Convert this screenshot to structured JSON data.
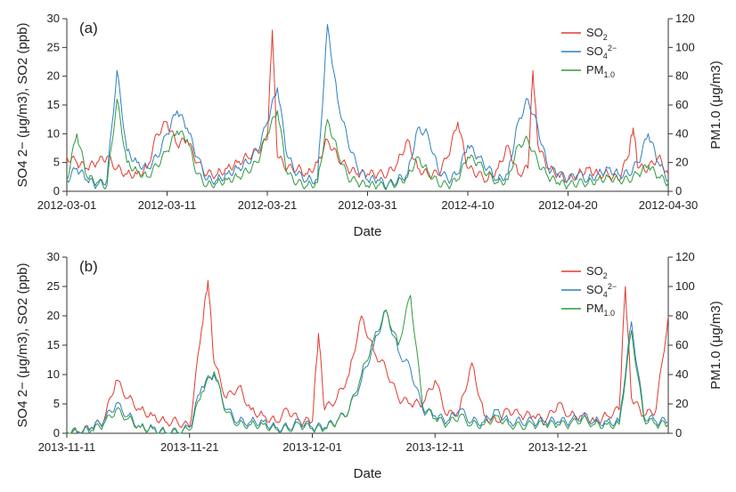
{
  "chart_data": [
    {
      "type": "line",
      "panel_label": "(a)",
      "xlabel": "Date",
      "ylabel_left": "SO4 2− (μg/m3), SO2 (ppb)",
      "ylabel_right": "PM1.0 (μg/m3)",
      "ylim_left": [
        0,
        30
      ],
      "ylim_right": [
        0,
        120
      ],
      "yticks_left": [
        "0",
        "5",
        "10",
        "15",
        "20",
        "25",
        "30"
      ],
      "yticks_right": [
        "0",
        "20",
        "40",
        "60",
        "80",
        "100",
        "120"
      ],
      "x_range_days": [
        0,
        60
      ],
      "xtick_days": [
        0,
        10,
        20,
        30,
        40,
        50,
        60
      ],
      "xtick_labels": [
        "2012-03-01",
        "2012-03-11",
        "2012-03-21",
        "2012-03-31",
        "2012-4-10",
        "2012-04-20",
        "2012-04-30"
      ],
      "legend_position": "top-right",
      "series": [
        {
          "name": "SO2",
          "legend_main": "SO",
          "legend_sub": "2",
          "legend_sup": "",
          "color": "#e03a2e",
          "axis": "left",
          "x": [
            0,
            1,
            2,
            3,
            4,
            5,
            6,
            7,
            8,
            9,
            10,
            11,
            12,
            13,
            14,
            15,
            16,
            17,
            18,
            19,
            20,
            20.5,
            21,
            22,
            23,
            24,
            25,
            26,
            27,
            28,
            29,
            30,
            31,
            32,
            33,
            34,
            35,
            36,
            37,
            38,
            39,
            40,
            41,
            42,
            43,
            44,
            45,
            46,
            46.5,
            47,
            48,
            49,
            50,
            51,
            52,
            53,
            54,
            55,
            56,
            56.5,
            57,
            58,
            59,
            60
          ],
          "y": [
            6,
            5,
            4,
            5,
            6,
            4,
            3,
            3,
            4,
            10,
            12,
            8,
            9,
            5,
            3,
            3,
            4,
            5,
            6,
            7,
            9,
            28,
            6,
            4,
            4,
            3,
            5,
            9,
            6,
            4,
            3,
            3,
            3,
            3,
            5,
            9,
            4,
            3,
            3,
            6,
            12,
            4,
            3,
            2,
            4,
            8,
            3,
            4,
            21,
            8,
            4,
            3,
            2,
            3,
            4,
            3,
            3,
            2,
            6,
            11,
            4,
            4,
            6,
            3
          ]
        },
        {
          "name": "SO4 2−",
          "legend_main": "SO",
          "legend_sub": "4",
          "legend_sup": "2−",
          "color": "#2e7fbf",
          "axis": "left",
          "x": [
            0,
            1,
            2,
            3,
            4,
            5,
            6,
            7,
            8,
            9,
            10,
            11,
            12,
            13,
            14,
            15,
            16,
            17,
            18,
            19,
            20,
            21,
            22,
            23,
            24,
            25,
            26,
            27,
            28,
            29,
            30,
            31,
            32,
            33,
            34,
            35,
            36,
            37,
            38,
            39,
            40,
            41,
            42,
            43,
            44,
            45,
            46,
            47,
            48,
            49,
            50,
            51,
            52,
            53,
            54,
            55,
            56,
            57,
            58,
            59,
            60
          ],
          "y": [
            2,
            4,
            2,
            1,
            2,
            21,
            7,
            5,
            4,
            6,
            10,
            14,
            11,
            6,
            2,
            2,
            3,
            4,
            5,
            7,
            12,
            18,
            6,
            3,
            2,
            2,
            29,
            16,
            9,
            4,
            2,
            2,
            1,
            2,
            3,
            11,
            10,
            4,
            2,
            3,
            8,
            6,
            4,
            2,
            3,
            12,
            16,
            11,
            4,
            3,
            2,
            3,
            2,
            3,
            4,
            3,
            3,
            5,
            10,
            5,
            2
          ]
        },
        {
          "name": "PM1.0",
          "legend_main": "PM",
          "legend_sub": "1.0",
          "legend_sup": "",
          "color": "#2e9a3e",
          "axis": "right",
          "x": [
            0,
            1,
            2,
            3,
            4,
            5,
            6,
            7,
            8,
            9,
            10,
            11,
            12,
            13,
            14,
            15,
            16,
            17,
            18,
            19,
            20,
            21,
            22,
            23,
            24,
            25,
            26,
            27,
            28,
            29,
            30,
            31,
            32,
            33,
            34,
            35,
            36,
            37,
            38,
            39,
            40,
            41,
            42,
            43,
            44,
            45,
            46,
            47,
            48,
            49,
            50,
            51,
            52,
            53,
            54,
            55,
            56,
            57,
            58,
            59,
            60
          ],
          "y": [
            8,
            40,
            10,
            6,
            4,
            64,
            20,
            14,
            10,
            18,
            28,
            42,
            36,
            12,
            4,
            6,
            8,
            10,
            14,
            20,
            40,
            56,
            12,
            6,
            4,
            6,
            50,
            28,
            10,
            6,
            4,
            4,
            4,
            6,
            10,
            24,
            14,
            6,
            4,
            8,
            24,
            20,
            12,
            6,
            8,
            32,
            36,
            20,
            10,
            6,
            4,
            6,
            6,
            8,
            10,
            8,
            8,
            12,
            18,
            10,
            6
          ]
        }
      ]
    },
    {
      "type": "line",
      "panel_label": "(b)",
      "xlabel": "Date",
      "ylabel_left": "SO4 2− (μg/m3), SO2 (ppb)",
      "ylabel_right": "PM1.0 (μg/m3)",
      "ylim_left": [
        0,
        30
      ],
      "ylim_right": [
        0,
        120
      ],
      "yticks_left": [
        "0",
        "5",
        "10",
        "15",
        "20",
        "25",
        "30"
      ],
      "yticks_right": [
        "0",
        "20",
        "40",
        "60",
        "80",
        "100",
        "120"
      ],
      "x_range_days": [
        0,
        49
      ],
      "xtick_days": [
        0,
        10,
        20,
        30,
        40
      ],
      "xtick_labels": [
        "2013-11-11",
        "2013-11-21",
        "2013-12-01",
        "2013-12-11",
        "2013-12-21"
      ],
      "legend_position": "top-right",
      "series": [
        {
          "name": "SO2",
          "legend_main": "SO",
          "legend_sub": "2",
          "legend_sup": "",
          "color": "#e03a2e",
          "axis": "left",
          "x": [
            0,
            1,
            2,
            3,
            4,
            5,
            6,
            7,
            8,
            9,
            10,
            11,
            11.5,
            12,
            13,
            14,
            15,
            16,
            17,
            18,
            19,
            20,
            20.5,
            21,
            22,
            23,
            24,
            25,
            26,
            27,
            28,
            29,
            30,
            31,
            32,
            33,
            34,
            35,
            36,
            37,
            38,
            39,
            40,
            41,
            42,
            43,
            44,
            45,
            45.5,
            46,
            47,
            48,
            49
          ],
          "y": [
            0,
            0,
            1,
            2,
            9,
            6,
            4,
            3,
            2,
            2,
            1,
            18,
            26,
            12,
            6,
            8,
            4,
            3,
            2,
            4,
            2,
            2,
            17,
            4,
            6,
            10,
            20,
            14,
            11,
            6,
            5,
            5,
            9,
            3,
            4,
            12,
            3,
            2,
            4,
            3,
            3,
            2,
            5,
            3,
            3,
            2,
            3,
            4,
            25,
            6,
            3,
            4,
            20
          ]
        },
        {
          "name": "SO4 2−",
          "legend_main": "SO",
          "legend_sub": "4",
          "legend_sup": "2−",
          "color": "#2e7fbf",
          "axis": "left",
          "x": [
            0,
            1,
            2,
            3,
            4,
            5,
            6,
            7,
            8,
            9,
            10,
            11,
            12,
            13,
            14,
            15,
            16,
            17,
            18,
            19,
            20,
            21,
            22,
            23,
            24,
            25,
            26,
            27,
            28,
            29,
            30,
            31,
            32,
            33,
            34,
            35,
            36,
            37,
            38,
            39,
            40,
            41,
            42,
            43,
            44,
            45,
            46,
            47,
            48,
            49
          ],
          "y": [
            0,
            0,
            1,
            2,
            5,
            3,
            1,
            1,
            0,
            0,
            1,
            8,
            10,
            4,
            2,
            2,
            2,
            1,
            1,
            2,
            1,
            1,
            2,
            4,
            9,
            15,
            21,
            14,
            11,
            4,
            3,
            2,
            4,
            2,
            2,
            4,
            2,
            2,
            2,
            2,
            2,
            2,
            3,
            2,
            2,
            2,
            19,
            3,
            2,
            2
          ]
        },
        {
          "name": "PM1.0",
          "legend_main": "PM",
          "legend_sub": "1.0",
          "legend_sup": "",
          "color": "#2e9a3e",
          "axis": "right",
          "x": [
            0,
            1,
            2,
            3,
            4,
            5,
            6,
            7,
            8,
            9,
            10,
            11,
            12,
            13,
            14,
            15,
            16,
            17,
            18,
            19,
            20,
            21,
            22,
            23,
            24,
            25,
            26,
            27,
            28,
            29,
            30,
            31,
            32,
            33,
            34,
            35,
            36,
            37,
            38,
            39,
            40,
            41,
            42,
            43,
            44,
            45,
            46,
            47,
            48,
            49
          ],
          "y": [
            1,
            1,
            2,
            6,
            16,
            10,
            4,
            3,
            1,
            1,
            2,
            28,
            42,
            14,
            6,
            6,
            6,
            3,
            3,
            6,
            3,
            3,
            8,
            16,
            40,
            64,
            84,
            60,
            94,
            18,
            10,
            6,
            12,
            6,
            6,
            12,
            6,
            5,
            6,
            6,
            6,
            6,
            10,
            6,
            6,
            6,
            70,
            10,
            6,
            6
          ]
        }
      ]
    }
  ]
}
